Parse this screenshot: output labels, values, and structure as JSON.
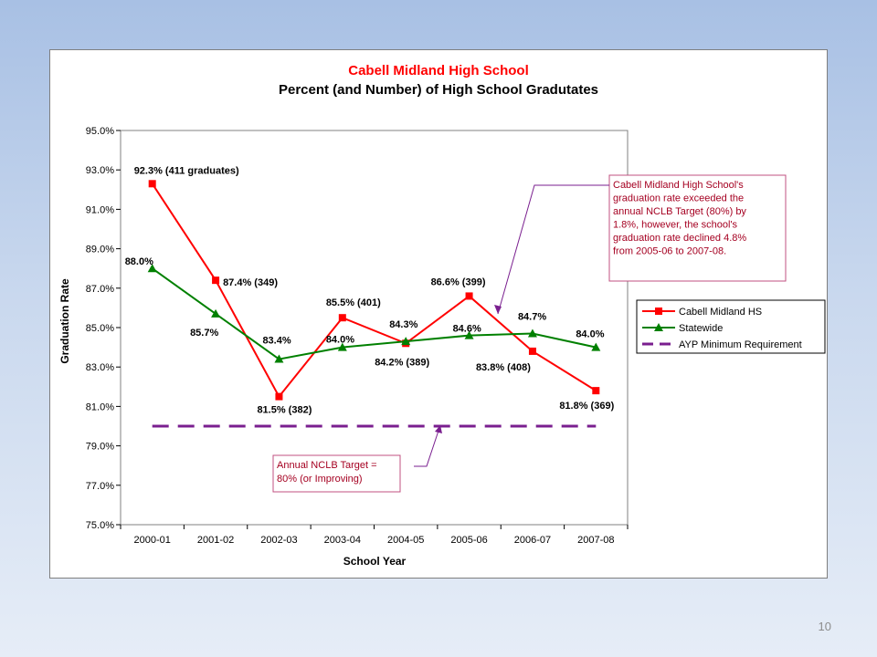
{
  "slide": {
    "page_number": "10"
  },
  "chart_data": {
    "type": "line",
    "title": "Cabell Midland High School",
    "subtitle": "Percent (and Number) of High School Gradutates",
    "xlabel": "School Year",
    "ylabel": "Graduation Rate",
    "categories": [
      "2000-01",
      "2001-02",
      "2002-03",
      "2003-04",
      "2004-05",
      "2005-06",
      "2006-07",
      "2007-08"
    ],
    "ylim": [
      75,
      95
    ],
    "yticks": [
      75,
      77,
      79,
      81,
      83,
      85,
      87,
      89,
      91,
      93,
      95
    ],
    "ytick_labels": [
      "75.0%",
      "77.0%",
      "79.0%",
      "81.0%",
      "83.0%",
      "85.0%",
      "87.0%",
      "89.0%",
      "91.0%",
      "93.0%",
      "95.0%"
    ],
    "grid": false,
    "legend_position": "right",
    "series": [
      {
        "name": "Cabell Midland HS",
        "color": "#ff0000",
        "marker": "square",
        "values": [
          92.3,
          87.4,
          81.5,
          85.5,
          84.2,
          86.6,
          83.8,
          81.8
        ],
        "labels": [
          "92.3% (411 graduates)",
          "87.4% (349)",
          "81.5% (382)",
          "85.5% (401)",
          "84.2% (389)",
          "86.6% (399)",
          "83.8% (408)",
          "81.8% (369)"
        ]
      },
      {
        "name": "Statewide",
        "color": "#008000",
        "marker": "triangle",
        "values": [
          88.0,
          85.7,
          83.4,
          84.0,
          84.3,
          84.6,
          84.7,
          84.0
        ],
        "labels": [
          "88.0%",
          "85.7%",
          "83.4%",
          "84.0%",
          "84.3%",
          "84.6%",
          "84.7%",
          "84.0%"
        ]
      },
      {
        "name": "AYP Minimum Requirement",
        "color": "#7a1f8f",
        "marker": "none",
        "dashed": true,
        "values": [
          80,
          80,
          80,
          80,
          80,
          80,
          80,
          80
        ]
      }
    ],
    "annotations": [
      {
        "text_lines": [
          "Cabell Midland High School's",
          "graduation rate exceeded the",
          "annual NCLB Target (80%) by",
          "1.8%, however, the school's",
          "graduation rate declined 4.8%",
          "from 2005-06 to 2007-08."
        ]
      },
      {
        "text_lines": [
          "Annual NCLB  Target =",
          "80% (or Improving)"
        ]
      }
    ]
  }
}
